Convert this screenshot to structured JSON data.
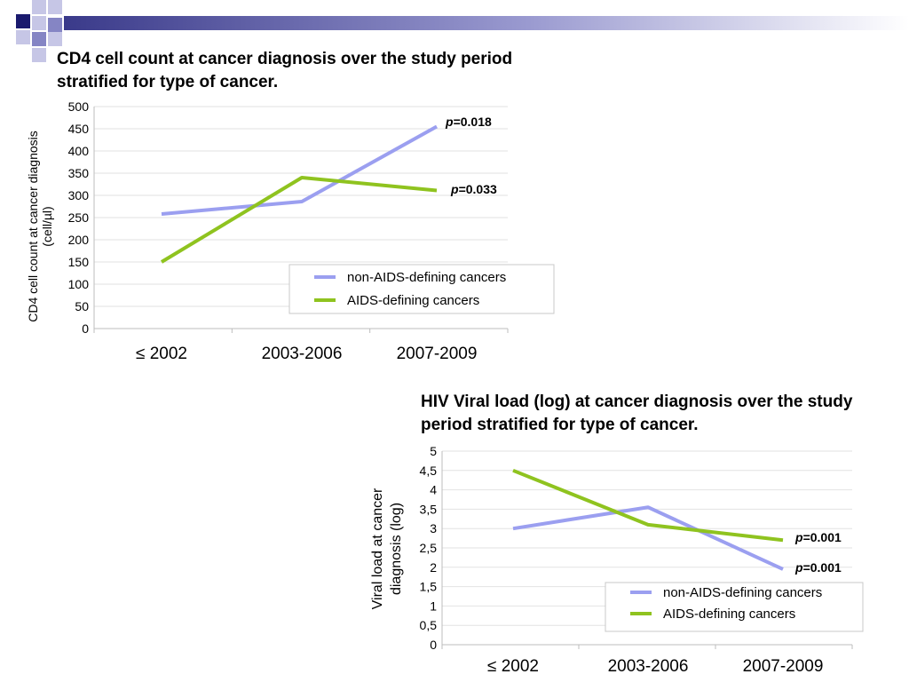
{
  "theme": {
    "nav_dark": "#1a1a6e",
    "nav_mid": "#8585c4",
    "nav_light": "#c6c6e6",
    "non_aids_color": "#9b9ff0",
    "aids_color": "#8fc31f"
  },
  "chart_data": [
    {
      "type": "line",
      "title": "CD4 cell count at cancer diagnosis over the study period stratified for type of cancer.",
      "ylabel": "CD4 cell count at cancer diagnosis (cell/µl)",
      "ylabel_lines": [
        "CD4 cell count at cancer diagnosis",
        "(cell/µl)"
      ],
      "categories": [
        "≤ 2002",
        "2003-2006",
        "2007-2009"
      ],
      "yticks": [
        "0",
        "50",
        "100",
        "150",
        "200",
        "250",
        "300",
        "350",
        "400",
        "450",
        "500"
      ],
      "ylim": [
        0,
        500
      ],
      "grid": true,
      "legend": "bottom-right",
      "series": [
        {
          "name": "non-AIDS-defining cancers",
          "values": [
            258,
            286,
            455
          ],
          "p_label": "p=0.018",
          "p_prefix": "p",
          "p_value": "=0.018"
        },
        {
          "name": "AIDS-defining cancers",
          "values": [
            150,
            340,
            311
          ],
          "p_label": "p=0.033",
          "p_prefix": "p",
          "p_value": "=0.033"
        }
      ]
    },
    {
      "type": "line",
      "title": "HIV Viral load (log) at cancer diagnosis over the study period stratified for type of cancer.",
      "ylabel": "Viral load at cancer diagnosis (log)",
      "ylabel_lines": [
        "Viral load at cancer",
        "diagnosis (log)"
      ],
      "categories": [
        "≤ 2002",
        "2003-2006",
        "2007-2009"
      ],
      "yticks": [
        "0",
        "0,5",
        "1",
        "1,5",
        "2",
        "2,5",
        "3",
        "3,5",
        "4",
        "4,5",
        "5"
      ],
      "ylim": [
        0,
        5
      ],
      "grid": true,
      "legend": "bottom-right",
      "series": [
        {
          "name": "non-AIDS-defining cancers",
          "values": [
            3.0,
            3.55,
            1.95
          ],
          "p_label": "p=0.001",
          "p_prefix": "p",
          "p_value": "=0.001"
        },
        {
          "name": "AIDS-defining cancers",
          "values": [
            4.5,
            3.1,
            2.7
          ],
          "p_label": "p=0.001",
          "p_prefix": "p",
          "p_value": "=0.001"
        }
      ]
    }
  ]
}
